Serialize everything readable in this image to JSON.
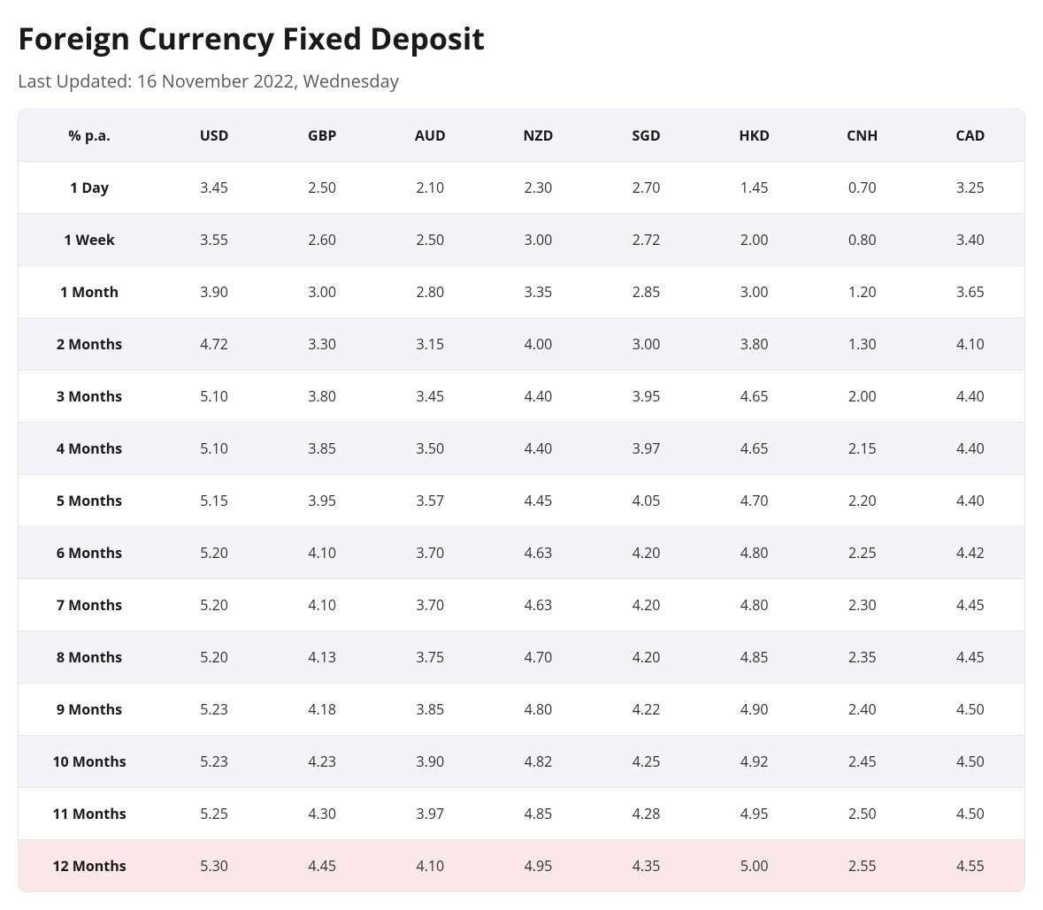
{
  "title": "Foreign Currency Fixed Deposit",
  "last_updated": "Last Updated: 16 November 2022, Wednesday",
  "table": {
    "columns": [
      "% p.a.",
      "USD",
      "GBP",
      "AUD",
      "NZD",
      "SGD",
      "HKD",
      "CNH",
      "CAD"
    ],
    "rows": [
      {
        "label": "1 Day",
        "values": [
          "3.45",
          "2.50",
          "2.10",
          "2.30",
          "2.70",
          "1.45",
          "0.70",
          "3.25"
        ],
        "highlight": false
      },
      {
        "label": "1 Week",
        "values": [
          "3.55",
          "2.60",
          "2.50",
          "3.00",
          "2.72",
          "2.00",
          "0.80",
          "3.40"
        ],
        "highlight": false
      },
      {
        "label": "1 Month",
        "values": [
          "3.90",
          "3.00",
          "2.80",
          "3.35",
          "2.85",
          "3.00",
          "1.20",
          "3.65"
        ],
        "highlight": false
      },
      {
        "label": "2 Months",
        "values": [
          "4.72",
          "3.30",
          "3.15",
          "4.00",
          "3.00",
          "3.80",
          "1.30",
          "4.10"
        ],
        "highlight": false
      },
      {
        "label": "3 Months",
        "values": [
          "5.10",
          "3.80",
          "3.45",
          "4.40",
          "3.95",
          "4.65",
          "2.00",
          "4.40"
        ],
        "highlight": false
      },
      {
        "label": "4 Months",
        "values": [
          "5.10",
          "3.85",
          "3.50",
          "4.40",
          "3.97",
          "4.65",
          "2.15",
          "4.40"
        ],
        "highlight": false
      },
      {
        "label": "5 Months",
        "values": [
          "5.15",
          "3.95",
          "3.57",
          "4.45",
          "4.05",
          "4.70",
          "2.20",
          "4.40"
        ],
        "highlight": false
      },
      {
        "label": "6 Months",
        "values": [
          "5.20",
          "4.10",
          "3.70",
          "4.63",
          "4.20",
          "4.80",
          "2.25",
          "4.42"
        ],
        "highlight": false
      },
      {
        "label": "7 Months",
        "values": [
          "5.20",
          "4.10",
          "3.70",
          "4.63",
          "4.20",
          "4.80",
          "2.30",
          "4.45"
        ],
        "highlight": false
      },
      {
        "label": "8 Months",
        "values": [
          "5.20",
          "4.13",
          "3.75",
          "4.70",
          "4.20",
          "4.85",
          "2.35",
          "4.45"
        ],
        "highlight": false
      },
      {
        "label": "9 Months",
        "values": [
          "5.23",
          "4.18",
          "3.85",
          "4.80",
          "4.22",
          "4.90",
          "2.40",
          "4.50"
        ],
        "highlight": false
      },
      {
        "label": "10 Months",
        "values": [
          "5.23",
          "4.23",
          "3.90",
          "4.82",
          "4.25",
          "4.92",
          "2.45",
          "4.50"
        ],
        "highlight": false
      },
      {
        "label": "11 Months",
        "values": [
          "5.25",
          "4.30",
          "3.97",
          "4.85",
          "4.28",
          "4.95",
          "2.50",
          "4.50"
        ],
        "highlight": false
      },
      {
        "label": "12 Months",
        "values": [
          "5.30",
          "4.45",
          "4.10",
          "4.95",
          "4.35",
          "5.00",
          "2.55",
          "4.55"
        ],
        "highlight": true
      }
    ],
    "header_bg_color": "#f3f3f8",
    "row_odd_bg_color": "#ffffff",
    "row_even_bg_color": "#f3f3f8",
    "highlight_bg_color": "#f9e8e6",
    "border_color": "#e5e5ec",
    "text_color": "#333333",
    "label_font_weight": 700,
    "cell_font_size": 16
  }
}
